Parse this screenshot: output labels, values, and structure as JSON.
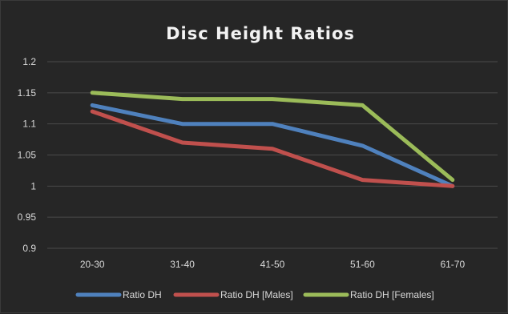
{
  "chart_data": {
    "type": "line",
    "title": "Disc Height Ratios",
    "xlabel": "",
    "ylabel": "",
    "categories": [
      "20-30",
      "31-40",
      "41-50",
      "51-60",
      "61-70"
    ],
    "ylim": [
      0.9,
      1.2
    ],
    "yticks": [
      "0.9",
      "0.95",
      "1",
      "1.05",
      "1.1",
      "1.15",
      "1.2"
    ],
    "grid": true,
    "legend_position": "bottom",
    "series": [
      {
        "name": "Ratio DH",
        "color": "#4f81bd",
        "values": [
          1.13,
          1.1,
          1.1,
          1.065,
          1.0
        ]
      },
      {
        "name": "Ratio DH [Males]",
        "color": "#c0504d",
        "values": [
          1.12,
          1.07,
          1.06,
          1.01,
          1.0
        ]
      },
      {
        "name": "Ratio DH [Females]",
        "color": "#9bbb59",
        "values": [
          1.15,
          1.14,
          1.14,
          1.13,
          1.01
        ]
      }
    ]
  }
}
